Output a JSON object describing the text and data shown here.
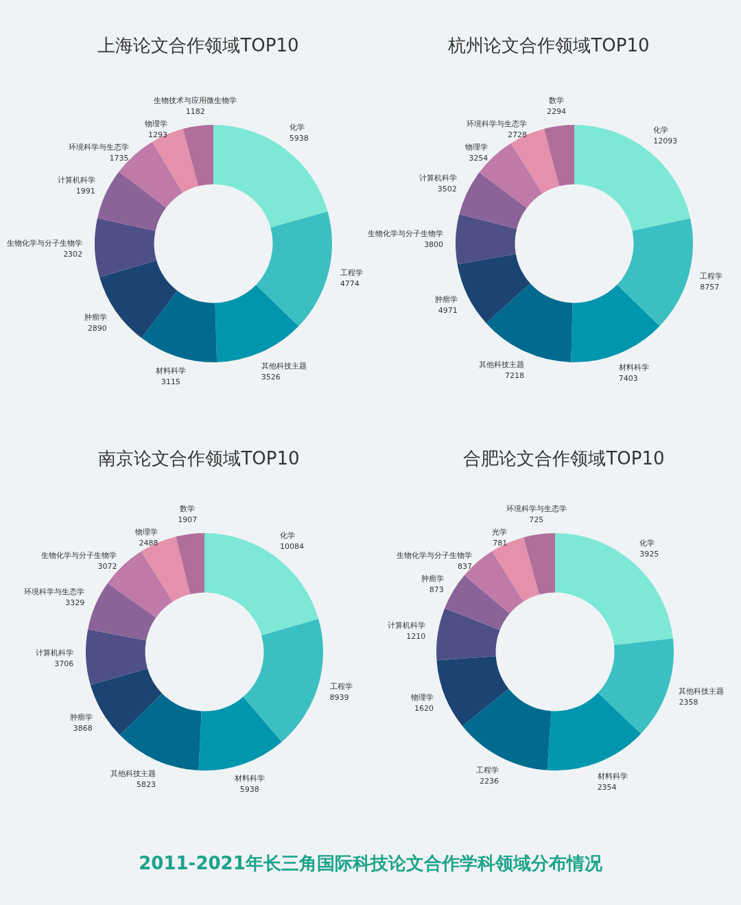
{
  "chart_data": [
    {
      "type": "donut",
      "title": "上海论文合作领域TOP10",
      "categories": [
        "化学",
        "工程学",
        "其他科技主题",
        "材料科学",
        "肿瘤学",
        "生物化学与分子生物学",
        "计算机科学",
        "环境科学与生态学",
        "物理学",
        "生物技术与应用微生物学"
      ],
      "values": [
        5938,
        4774,
        3526,
        3115,
        2890,
        2302,
        1991,
        1735,
        1293,
        1182
      ],
      "colors": [
        "#7de8d6",
        "#3cbfc2",
        "#0096ad",
        "#006a8f",
        "#1b4472",
        "#4e4f86",
        "#8a6399",
        "#c07aa8",
        "#e591ac",
        "#b06f9a"
      ],
      "data_labels": true
    },
    {
      "type": "donut",
      "title": "杭州论文合作领域TOP10",
      "categories": [
        "化学",
        "工程学",
        "材料科学",
        "其他科技主题",
        "肿瘤学",
        "生物化学与分子生物学",
        "计算机科学",
        "物理学",
        "环境科学与生态学",
        "数学"
      ],
      "values": [
        12093,
        8757,
        7403,
        7218,
        4971,
        3800,
        3502,
        3254,
        2728,
        2294
      ],
      "colors": [
        "#7de8d6",
        "#3cbfc2",
        "#0096ad",
        "#006a8f",
        "#1b4472",
        "#4e4f86",
        "#8a6399",
        "#c07aa8",
        "#e591ac",
        "#b06f9a"
      ],
      "data_labels": true
    },
    {
      "type": "donut",
      "title": "南京论文合作领域TOP10",
      "categories": [
        "化学",
        "工程学",
        "材料科学",
        "其他科技主题",
        "肿瘤学",
        "计算机科学",
        "环境科学与生态学",
        "生物化学与分子生物学",
        "物理学",
        "数学"
      ],
      "values": [
        10084,
        8939,
        5938,
        5823,
        3868,
        3706,
        3329,
        3072,
        2488,
        1907
      ],
      "colors": [
        "#7de8d6",
        "#3cbfc2",
        "#0096ad",
        "#006a8f",
        "#1b4472",
        "#4e4f86",
        "#8a6399",
        "#c07aa8",
        "#e591ac",
        "#b06f9a"
      ],
      "data_labels": true
    },
    {
      "type": "donut",
      "title": "合肥论文合作领域TOP10",
      "categories": [
        "化学",
        "其他科技主题",
        "材料科学",
        "工程学",
        "物理学",
        "计算机科学",
        "肿瘤学",
        "生物化学与分子生物学",
        "光学",
        "环境科学与生态学"
      ],
      "values": [
        3925,
        2358,
        2354,
        2236,
        1620,
        1210,
        873,
        837,
        781,
        725
      ],
      "colors": [
        "#7de8d6",
        "#3cbfc2",
        "#0096ad",
        "#006a8f",
        "#1b4472",
        "#4e4f86",
        "#8a6399",
        "#c07aa8",
        "#e591ac",
        "#b06f9a"
      ],
      "data_labels": true,
      "annotations": [
        "2011-2021年长三角国际科技论文合作学科领域分布情况"
      ]
    }
  ]
}
